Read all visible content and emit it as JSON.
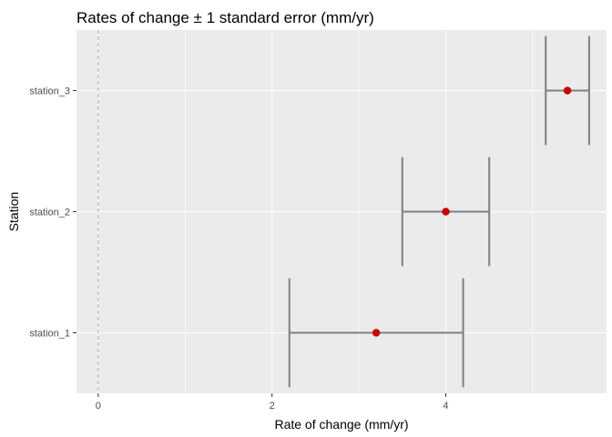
{
  "chart_data": {
    "type": "scatter",
    "title": "Rates of change ± 1 standard error (mm/yr)",
    "xlabel": "Rate of change (mm/yr)",
    "ylabel": "Station",
    "xlim": [
      -0.25,
      5.85
    ],
    "x_ticks": [
      0,
      2,
      4
    ],
    "x_tick_labels": [
      "0",
      "2",
      "4"
    ],
    "x_minor_ticks": [
      1,
      3,
      5
    ],
    "categories": [
      "station_1",
      "station_2",
      "station_3"
    ],
    "points": [
      {
        "station": "station_1",
        "rate": 3.2,
        "lower": 2.2,
        "upper": 4.2
      },
      {
        "station": "station_2",
        "rate": 4.0,
        "lower": 3.5,
        "upper": 4.5
      },
      {
        "station": "station_3",
        "rate": 5.4,
        "lower": 5.15,
        "upper": 5.65
      }
    ],
    "reference_line": {
      "x": 0,
      "style": "dashed"
    },
    "grid": true,
    "legend": "none",
    "colors": {
      "panel": "#ebebeb",
      "grid": "#ffffff",
      "errorbar": "#808080",
      "point": "#cc0000",
      "reference": "#a8a8a8"
    }
  }
}
